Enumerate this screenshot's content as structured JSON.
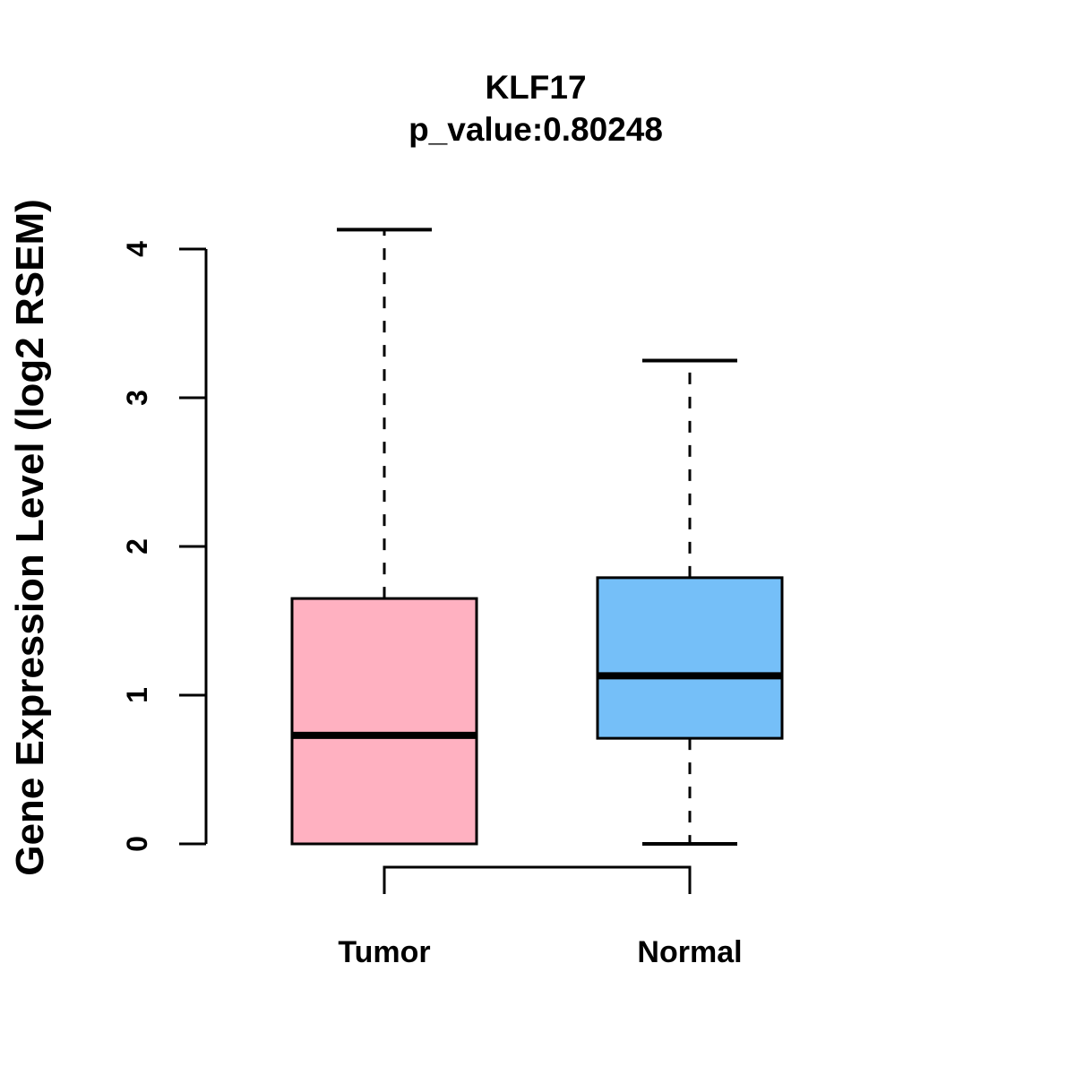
{
  "title": "KLF17",
  "subtitle": "p_value:0.80248",
  "chart_data": {
    "type": "boxplot",
    "title": "KLF17",
    "subtitle": "p_value:0.80248",
    "ylabel": "Gene Expression Level (log2 RSEM)",
    "xlabel": "",
    "ylim": [
      0,
      4
    ],
    "yticks": [
      0,
      1,
      2,
      3,
      4
    ],
    "grid": false,
    "legend": "none",
    "categories": [
      "Tumor",
      "Normal"
    ],
    "groups": [
      {
        "name": "Tumor",
        "color": "#FFB1C1",
        "min": 0,
        "q1": 0,
        "median": 0.73,
        "q3": 1.65,
        "max": 4.13
      },
      {
        "name": "Normal",
        "color": "#75BFF8",
        "min": 0,
        "q1": 0.71,
        "median": 1.13,
        "q3": 1.79,
        "max": 3.25
      }
    ],
    "comparison_bracket": {
      "between": [
        "Tumor",
        "Normal"
      ],
      "label": ""
    },
    "line_color": "#000000",
    "background_color": "#FFFFFF"
  }
}
